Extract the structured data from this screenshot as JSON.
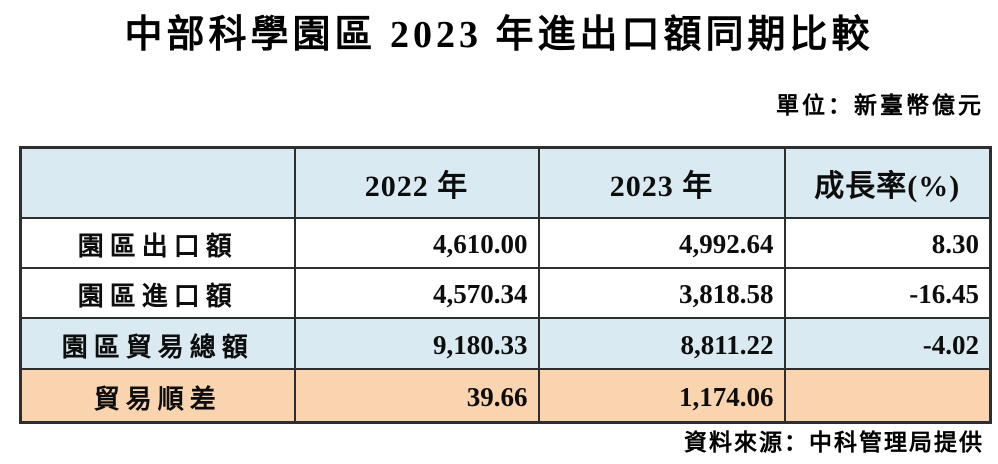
{
  "title": "中部科學園區 2023 年進出口額同期比較",
  "unit_note": "單位：新臺幣億元",
  "source_note": "資料來源：中科管理局提供",
  "table": {
    "columns": [
      "",
      "2022 年",
      "2023 年",
      "成長率(%)"
    ],
    "rows": [
      {
        "label": "園區出口額",
        "y2022": "4,610.00",
        "y2023": "4,992.64",
        "growth": "8.30"
      },
      {
        "label": "園區進口額",
        "y2022": "4,570.34",
        "y2023": "3,818.58",
        "growth": "-16.45"
      },
      {
        "label": "園區貿易總額",
        "y2022": "9,180.33",
        "y2023": "8,811.22",
        "growth": "-4.02"
      },
      {
        "label": "貿易順差",
        "y2022": "39.66",
        "y2023": "1,174.06",
        "growth": ""
      }
    ]
  },
  "colors": {
    "header_bg": "#d9eaf2",
    "total_row_bg": "#d9eaf2",
    "surplus_row_bg": "#f9d4af",
    "border": "#2e2e2e",
    "text": "#000000"
  }
}
